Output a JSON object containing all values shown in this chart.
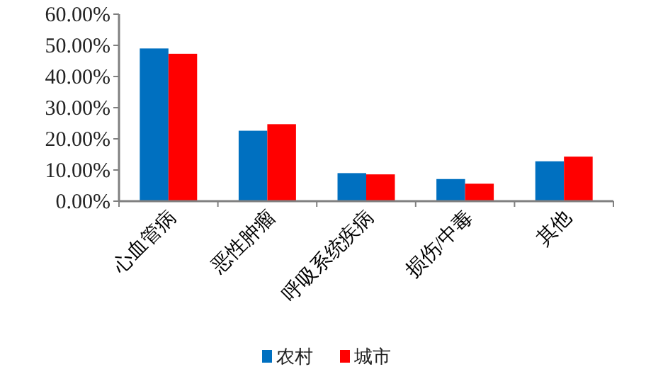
{
  "chart_data": {
    "type": "bar",
    "categories": [
      "心血管病",
      "恶性肿瘤",
      "呼吸系统疾病",
      "损伤/中毒",
      "其他"
    ],
    "series": [
      {
        "name": "农村",
        "color": "#0070c0",
        "values": [
          49.0,
          22.6,
          9.0,
          7.1,
          12.8
        ]
      },
      {
        "name": "城市",
        "color": "#ff0000",
        "values": [
          47.3,
          24.7,
          8.6,
          5.6,
          14.3
        ]
      }
    ],
    "ylim": [
      0,
      60
    ],
    "yticks": [
      {
        "value": 0,
        "label": "0.00%"
      },
      {
        "value": 10,
        "label": "10.00%"
      },
      {
        "value": 20,
        "label": "20.00%"
      },
      {
        "value": 30,
        "label": "30.00%"
      },
      {
        "value": 40,
        "label": "40.00%"
      },
      {
        "value": 50,
        "label": "50.00%"
      },
      {
        "value": 60,
        "label": "60.00%"
      }
    ],
    "grid": false,
    "legend": "bottom"
  }
}
